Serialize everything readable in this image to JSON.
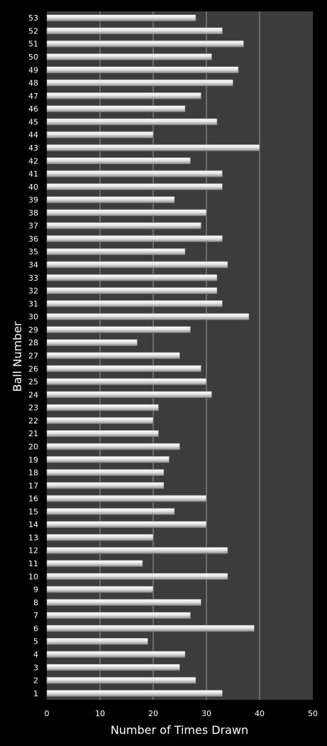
{
  "chart_data": {
    "type": "bar",
    "orientation": "horizontal",
    "xlabel": "Number of Times Drawn",
    "ylabel": "Ball Number",
    "xlim": [
      0,
      50
    ],
    "x_ticks": [
      "0",
      "10",
      "20",
      "30",
      "40",
      "50"
    ],
    "grid": "vertical gridlines",
    "colors": {
      "background": "#000000",
      "plot_area": "#3c3c3c",
      "bar": "#e0e0e0",
      "gridline": "#9a9a9a",
      "text": "#ffffff"
    },
    "categories": [
      "1",
      "2",
      "3",
      "4",
      "5",
      "6",
      "7",
      "8",
      "9",
      "10",
      "11",
      "12",
      "13",
      "14",
      "15",
      "16",
      "17",
      "18",
      "19",
      "20",
      "21",
      "22",
      "23",
      "24",
      "25",
      "26",
      "27",
      "28",
      "29",
      "30",
      "31",
      "32",
      "33",
      "34",
      "35",
      "36",
      "37",
      "38",
      "39",
      "40",
      "41",
      "42",
      "43",
      "44",
      "45",
      "46",
      "47",
      "48",
      "49",
      "50",
      "51",
      "52",
      "53"
    ],
    "values": [
      33,
      28,
      25,
      26,
      19,
      39,
      27,
      29,
      20,
      34,
      18,
      34,
      20,
      30,
      24,
      30,
      22,
      22,
      23,
      25,
      21,
      20,
      21,
      31,
      30,
      29,
      25,
      17,
      27,
      38,
      33,
      32,
      32,
      34,
      26,
      33,
      29,
      30,
      24,
      33,
      33,
      27,
      40,
      20,
      32,
      26,
      29,
      35,
      36,
      31,
      37,
      33,
      28
    ]
  }
}
